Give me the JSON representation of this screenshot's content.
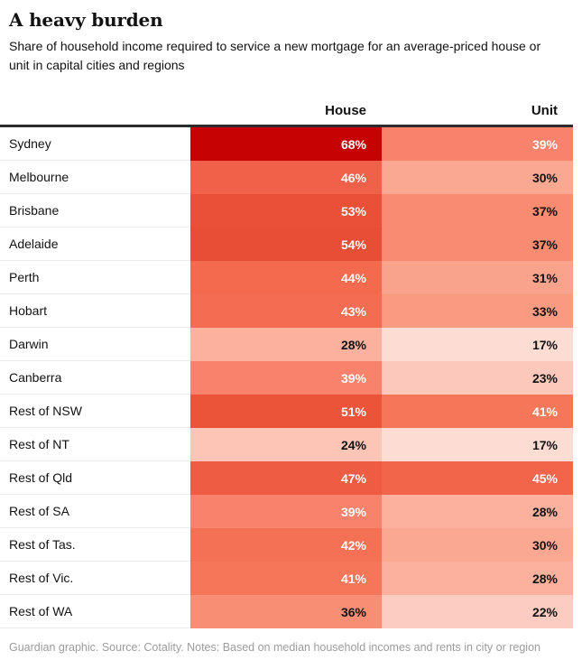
{
  "header": {
    "title": "A heavy burden",
    "subtitle": "Share of household income required to service a new mortgage for an average-priced house or unit in capital cities and regions"
  },
  "table": {
    "columns": [
      "House",
      "Unit"
    ],
    "rows": [
      {
        "label": "Sydney",
        "house": "68%",
        "unit": "39%",
        "house_color": "#c70202",
        "unit_color": "#f8826b",
        "house_text": "#ffffff",
        "unit_text": "#ffffff"
      },
      {
        "label": "Melbourne",
        "house": "46%",
        "unit": "30%",
        "house_color": "#f16149",
        "unit_color": "#faa892",
        "house_text": "#ffffff",
        "unit_text": "#121212"
      },
      {
        "label": "Brisbane",
        "house": "53%",
        "unit": "37%",
        "house_color": "#e95037",
        "unit_color": "#f88b70",
        "house_text": "#ffffff",
        "unit_text": "#121212"
      },
      {
        "label": "Adelaide",
        "house": "54%",
        "unit": "37%",
        "house_color": "#e84d35",
        "unit_color": "#f88b70",
        "house_text": "#ffffff",
        "unit_text": "#121212"
      },
      {
        "label": "Perth",
        "house": "44%",
        "unit": "31%",
        "house_color": "#f36a4e",
        "unit_color": "#faa38c",
        "house_text": "#ffffff",
        "unit_text": "#121212"
      },
      {
        "label": "Hobart",
        "house": "43%",
        "unit": "33%",
        "house_color": "#f46d52",
        "unit_color": "#f99b81",
        "house_text": "#ffffff",
        "unit_text": "#121212"
      },
      {
        "label": "Darwin",
        "house": "28%",
        "unit": "17%",
        "house_color": "#fbb19e",
        "unit_color": "#fddcd3",
        "house_text": "#121212",
        "unit_text": "#121212"
      },
      {
        "label": "Canberra",
        "house": "39%",
        "unit": "23%",
        "house_color": "#f8826b",
        "unit_color": "#fcc8bb",
        "house_text": "#ffffff",
        "unit_text": "#121212"
      },
      {
        "label": "Rest of NSW",
        "house": "51%",
        "unit": "41%",
        "house_color": "#eb5439",
        "unit_color": "#f67659",
        "house_text": "#ffffff",
        "unit_text": "#ffffff"
      },
      {
        "label": "Rest of NT",
        "house": "24%",
        "unit": "17%",
        "house_color": "#fcc5b6",
        "unit_color": "#fddcd3",
        "house_text": "#121212",
        "unit_text": "#121212"
      },
      {
        "label": "Rest of Qld",
        "house": "47%",
        "unit": "45%",
        "house_color": "#ef5c44",
        "unit_color": "#f2654b",
        "house_text": "#ffffff",
        "unit_text": "#ffffff"
      },
      {
        "label": "Rest of SA",
        "house": "39%",
        "unit": "28%",
        "house_color": "#f8826b",
        "unit_color": "#fbb19e",
        "house_text": "#ffffff",
        "unit_text": "#121212"
      },
      {
        "label": "Rest of Tas.",
        "house": "42%",
        "unit": "30%",
        "house_color": "#f57155",
        "unit_color": "#faa892",
        "house_text": "#ffffff",
        "unit_text": "#121212"
      },
      {
        "label": "Rest of Vic.",
        "house": "41%",
        "unit": "28%",
        "house_color": "#f67659",
        "unit_color": "#fbb19e",
        "house_text": "#ffffff",
        "unit_text": "#121212"
      },
      {
        "label": "Rest of WA",
        "house": "36%",
        "unit": "22%",
        "house_color": "#f88f74",
        "unit_color": "#fcccc0",
        "house_text": "#121212",
        "unit_text": "#121212"
      }
    ]
  },
  "footer": {
    "credit": "Guardian graphic. Source: Cotality. Notes: Based on median household incomes and rents in city or region"
  },
  "chart_data": {
    "type": "heatmap",
    "title": "A heavy burden",
    "subtitle": "Share of household income required to service a new mortgage for an average-priced house or unit in capital cities and regions",
    "categories": [
      "Sydney",
      "Melbourne",
      "Brisbane",
      "Adelaide",
      "Perth",
      "Hobart",
      "Darwin",
      "Canberra",
      "Rest of NSW",
      "Rest of NT",
      "Rest of Qld",
      "Rest of SA",
      "Rest of Tas.",
      "Rest of Vic.",
      "Rest of WA"
    ],
    "series": [
      {
        "name": "House",
        "values": [
          68,
          46,
          53,
          54,
          44,
          43,
          28,
          39,
          51,
          24,
          47,
          39,
          42,
          41,
          36
        ]
      },
      {
        "name": "Unit",
        "values": [
          39,
          30,
          37,
          37,
          31,
          33,
          17,
          23,
          41,
          17,
          45,
          28,
          30,
          28,
          22
        ]
      }
    ],
    "value_unit": "%",
    "color_scale": {
      "min": 17,
      "max": 68,
      "min_color": "#fddcd3",
      "max_color": "#c70202"
    },
    "legend_position": "none",
    "grid": false,
    "source": "Guardian graphic. Source: Cotality. Notes: Based on median household incomes and rents in city or region"
  }
}
